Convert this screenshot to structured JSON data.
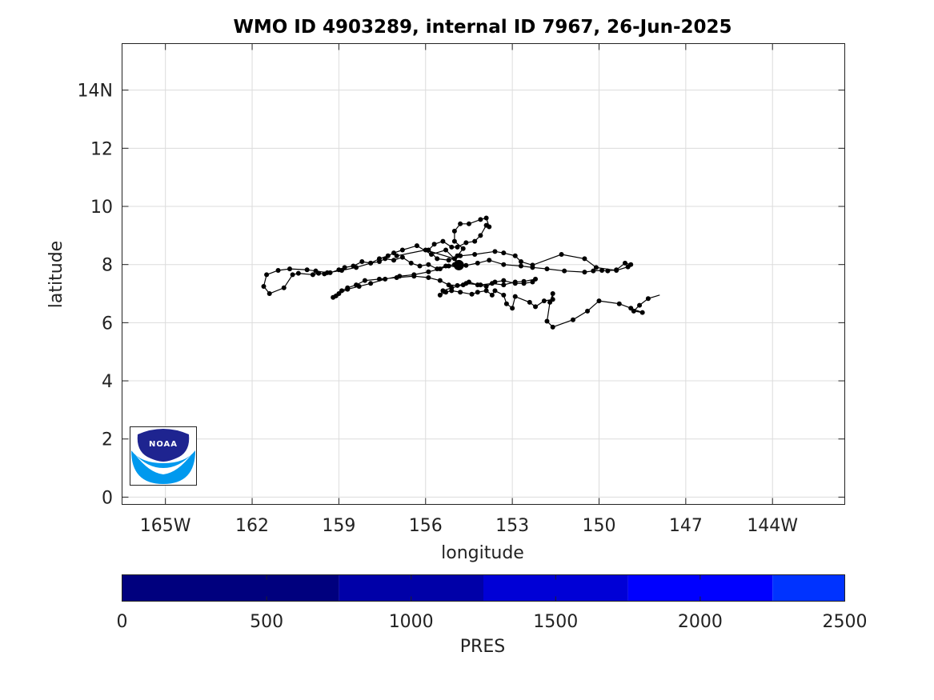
{
  "chart_data": {
    "type": "scatter",
    "title": "WMO ID 4903289, internal ID 7967, 26-Jun-2025",
    "xlabel": "longitude",
    "ylabel": "latitude",
    "xlim": [
      -166.5,
      -141.5
    ],
    "ylim": [
      -0.25,
      15.6
    ],
    "grid": true,
    "x_ticks": [
      {
        "value": -165,
        "label": "165W"
      },
      {
        "value": -162,
        "label": "162"
      },
      {
        "value": -159,
        "label": "159"
      },
      {
        "value": -156,
        "label": "156"
      },
      {
        "value": -153,
        "label": "153"
      },
      {
        "value": -150,
        "label": "150"
      },
      {
        "value": -147,
        "label": "147"
      },
      {
        "value": -144,
        "label": "144W"
      }
    ],
    "y_ticks": [
      {
        "value": 0,
        "label": "0"
      },
      {
        "value": 2,
        "label": "2"
      },
      {
        "value": 4,
        "label": "4"
      },
      {
        "value": 6,
        "label": "6"
      },
      {
        "value": 8,
        "label": "8"
      },
      {
        "value": 10,
        "label": "10"
      },
      {
        "value": 12,
        "label": "12"
      },
      {
        "value": 14,
        "label": "14N"
      }
    ],
    "series": [
      {
        "track": [
          [
            -147.9,
            6.95
          ],
          [
            -148.3,
            6.83
          ],
          [
            -148.6,
            6.6
          ],
          [
            -148.8,
            6.4
          ],
          [
            -148.5,
            6.35
          ],
          [
            -148.9,
            6.5
          ],
          [
            -149.3,
            6.65
          ],
          [
            -150.0,
            6.75
          ],
          [
            -150.4,
            6.4
          ],
          [
            -150.9,
            6.1
          ],
          [
            -151.6,
            5.85
          ],
          [
            -151.8,
            6.05
          ],
          [
            -151.7,
            6.7
          ],
          [
            -151.6,
            7.0
          ],
          [
            -151.6,
            6.8
          ],
          [
            -151.9,
            6.75
          ],
          [
            -152.2,
            6.55
          ],
          [
            -152.4,
            6.7
          ],
          [
            -152.9,
            6.9
          ],
          [
            -153.0,
            6.5
          ],
          [
            -153.2,
            6.65
          ],
          [
            -153.3,
            6.95
          ],
          [
            -153.6,
            7.1
          ],
          [
            -153.7,
            6.95
          ],
          [
            -153.9,
            7.1
          ],
          [
            -154.2,
            7.05
          ],
          [
            -154.4,
            6.98
          ],
          [
            -154.8,
            7.05
          ],
          [
            -155.1,
            7.1
          ],
          [
            -155.3,
            7.05
          ],
          [
            -155.5,
            6.95
          ],
          [
            -155.4,
            7.1
          ],
          [
            -155.1,
            7.2
          ],
          [
            -154.7,
            7.3
          ],
          [
            -154.5,
            7.4
          ],
          [
            -154.2,
            7.3
          ],
          [
            -153.9,
            7.25
          ],
          [
            -153.6,
            7.4
          ],
          [
            -153.3,
            7.45
          ],
          [
            -152.9,
            7.35
          ],
          [
            -152.6,
            7.35
          ],
          [
            -152.3,
            7.4
          ],
          [
            -152.2,
            7.5
          ],
          [
            -152.6,
            7.42
          ],
          [
            -152.9,
            7.4
          ],
          [
            -153.3,
            7.3
          ],
          [
            -153.7,
            7.35
          ],
          [
            -154.1,
            7.3
          ],
          [
            -154.6,
            7.35
          ],
          [
            -154.9,
            7.28
          ],
          [
            -155.2,
            7.3
          ],
          [
            -155.5,
            7.45
          ],
          [
            -155.9,
            7.55
          ],
          [
            -156.4,
            7.6
          ],
          [
            -157.0,
            7.55
          ],
          [
            -157.6,
            7.5
          ],
          [
            -158.1,
            7.45
          ],
          [
            -158.4,
            7.3
          ],
          [
            -158.7,
            7.2
          ],
          [
            -158.9,
            7.1
          ],
          [
            -159.1,
            6.92
          ],
          [
            -159.2,
            6.87
          ],
          [
            -159.0,
            7.0
          ],
          [
            -158.7,
            7.15
          ],
          [
            -158.3,
            7.25
          ],
          [
            -157.9,
            7.35
          ],
          [
            -157.4,
            7.5
          ],
          [
            -156.9,
            7.6
          ],
          [
            -156.4,
            7.65
          ],
          [
            -155.9,
            7.75
          ],
          [
            -155.5,
            7.85
          ],
          [
            -155.2,
            7.95
          ],
          [
            -154.9,
            7.92
          ],
          [
            -154.6,
            7.97
          ],
          [
            -154.2,
            8.05
          ],
          [
            -153.8,
            8.15
          ],
          [
            -153.3,
            8.0
          ],
          [
            -152.7,
            7.95
          ],
          [
            -152.3,
            7.9
          ],
          [
            -151.8,
            7.85
          ],
          [
            -151.2,
            7.78
          ],
          [
            -150.5,
            7.74
          ],
          [
            -150.2,
            7.78
          ],
          [
            -149.9,
            7.8
          ],
          [
            -149.7,
            7.78
          ],
          [
            -149.4,
            7.82
          ],
          [
            -149.1,
            8.05
          ],
          [
            -148.9,
            8.0
          ],
          [
            -149.0,
            7.92
          ],
          [
            -149.4,
            7.8
          ],
          [
            -150.1,
            7.9
          ],
          [
            -150.5,
            8.2
          ],
          [
            -151.3,
            8.35
          ],
          [
            -152.3,
            7.98
          ],
          [
            -152.7,
            8.1
          ],
          [
            -152.9,
            8.3
          ],
          [
            -153.3,
            8.4
          ],
          [
            -153.6,
            8.45
          ],
          [
            -154.3,
            8.35
          ],
          [
            -154.8,
            8.3
          ],
          [
            -155.2,
            8.15
          ],
          [
            -155.6,
            8.2
          ],
          [
            -155.9,
            8.5
          ],
          [
            -155.7,
            8.7
          ],
          [
            -155.4,
            8.8
          ],
          [
            -155.1,
            8.6
          ],
          [
            -154.9,
            8.6
          ],
          [
            -154.6,
            8.75
          ],
          [
            -154.3,
            8.8
          ],
          [
            -154.1,
            9.0
          ],
          [
            -153.9,
            9.35
          ],
          [
            -153.8,
            9.3
          ],
          [
            -153.9,
            9.6
          ],
          [
            -154.1,
            9.55
          ],
          [
            -154.5,
            9.4
          ],
          [
            -154.8,
            9.4
          ],
          [
            -155.0,
            9.15
          ],
          [
            -155.0,
            8.8
          ],
          [
            -154.7,
            8.55
          ],
          [
            -154.9,
            8.3
          ],
          [
            -155.0,
            8.0
          ],
          [
            -155.3,
            7.95
          ],
          [
            -155.6,
            7.85
          ],
          [
            -155.9,
            8.0
          ],
          [
            -156.2,
            7.95
          ],
          [
            -156.5,
            8.05
          ],
          [
            -156.8,
            8.25
          ],
          [
            -157.1,
            8.15
          ],
          [
            -157.4,
            8.2
          ],
          [
            -157.6,
            8.1
          ],
          [
            -157.9,
            8.05
          ],
          [
            -158.2,
            8.1
          ],
          [
            -158.5,
            7.95
          ],
          [
            -158.8,
            7.9
          ],
          [
            -159.0,
            7.82
          ],
          [
            -159.3,
            7.72
          ],
          [
            -159.5,
            7.68
          ],
          [
            -159.7,
            7.7
          ],
          [
            -159.9,
            7.65
          ],
          [
            -160.4,
            7.7
          ],
          [
            -160.6,
            7.65
          ],
          [
            -160.9,
            7.2
          ],
          [
            -161.4,
            7.0
          ],
          [
            -161.6,
            7.25
          ],
          [
            -161.5,
            7.65
          ],
          [
            -161.1,
            7.8
          ],
          [
            -160.7,
            7.85
          ],
          [
            -160.1,
            7.82
          ],
          [
            -159.8,
            7.78
          ],
          [
            -159.4,
            7.72
          ],
          [
            -158.9,
            7.8
          ],
          [
            -158.4,
            7.9
          ],
          [
            -157.9,
            8.05
          ],
          [
            -157.6,
            8.2
          ],
          [
            -157.3,
            8.3
          ],
          [
            -157.1,
            8.4
          ],
          [
            -156.8,
            8.5
          ],
          [
            -156.3,
            8.65
          ],
          [
            -155.8,
            8.35
          ],
          [
            -155.3,
            8.5
          ],
          [
            -154.8,
            8.0
          ],
          [
            -155.0,
            8.2
          ],
          [
            -156.0,
            8.5
          ],
          [
            -157.0,
            8.3
          ]
        ]
      }
    ],
    "start_marker": [
      -154.85,
      7.98
    ],
    "colorbar": {
      "label": "PRES",
      "range": [
        0,
        2500
      ],
      "ticks": [
        {
          "value": 0,
          "label": "0"
        },
        {
          "value": 500,
          "label": "500"
        },
        {
          "value": 1000,
          "label": "1000"
        },
        {
          "value": 1500,
          "label": "1500"
        },
        {
          "value": 2000,
          "label": "2000"
        },
        {
          "value": 2500,
          "label": "2500"
        }
      ],
      "bands": [
        {
          "from": 0,
          "to": 750,
          "color": "#00007e"
        },
        {
          "from": 750,
          "to": 1250,
          "color": "#0000a8"
        },
        {
          "from": 1250,
          "to": 1750,
          "color": "#0000d6"
        },
        {
          "from": 1750,
          "to": 2250,
          "color": "#0000ff"
        },
        {
          "from": 2250,
          "to": 2500,
          "color": "#0033ff"
        }
      ]
    },
    "logo": {
      "text": "NOAA",
      "colors": {
        "dark": "#1e2490",
        "light": "#0099ee",
        "accent": "#ffffff"
      }
    }
  }
}
